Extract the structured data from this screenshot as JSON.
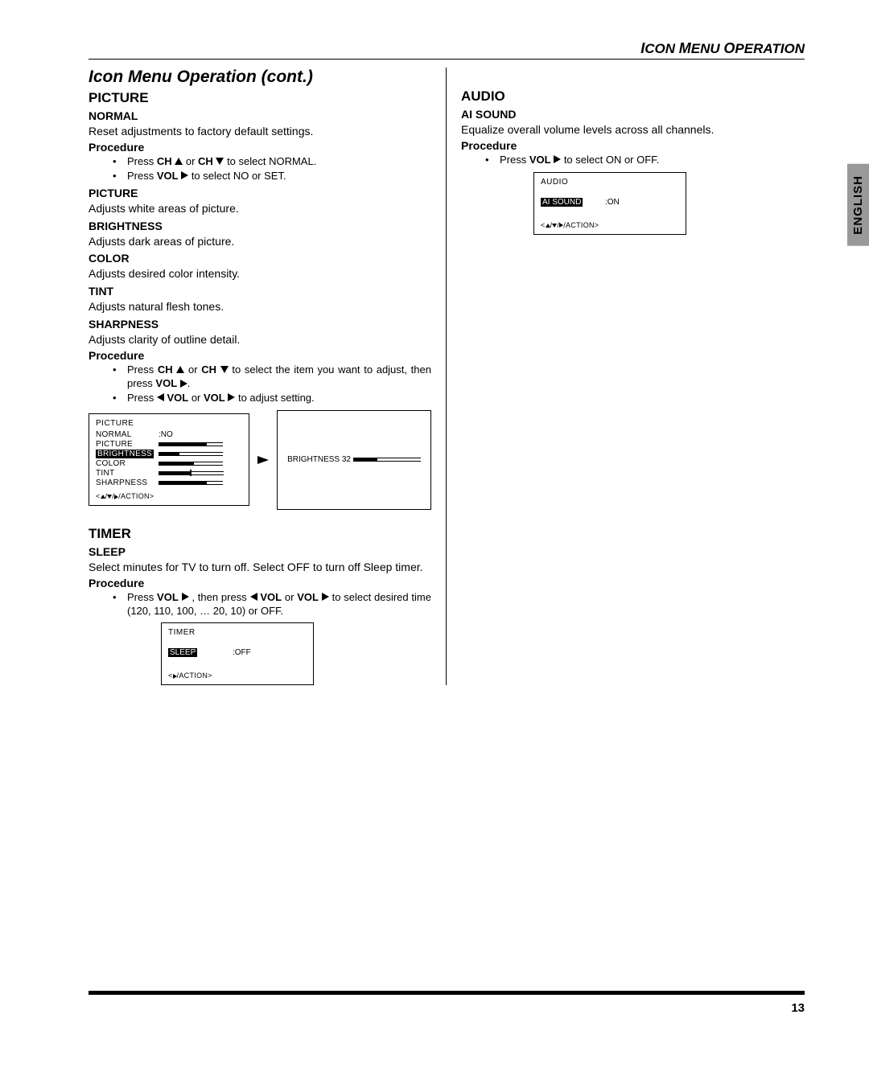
{
  "header": {
    "section": "ICON MENU OPERATION"
  },
  "sideTab": "ENGLISH",
  "left": {
    "titleCont": "Icon Menu Operation (cont.)",
    "picture": {
      "heading": "PICTURE",
      "normal": {
        "label": "NORMAL",
        "desc": "Reset adjustments to factory default settings.",
        "procLabel": "Procedure",
        "step1a": "Press ",
        "step1b": "CH",
        "step1c": " or ",
        "step1d": "CH",
        "step1e": " to select NORMAL.",
        "step2a": "Press ",
        "step2b": "VOL",
        "step2c": " to select NO or SET."
      },
      "pictureItem": {
        "label": "PICTURE",
        "desc": "Adjusts white areas of picture."
      },
      "brightness": {
        "label": "BRIGHTNESS",
        "desc": "Adjusts dark areas of picture."
      },
      "color": {
        "label": "COLOR",
        "desc": "Adjusts desired color intensity."
      },
      "tint": {
        "label": "TINT",
        "desc": "Adjusts natural flesh tones."
      },
      "sharpness": {
        "label": "SHARPNESS",
        "desc": "Adjusts clarity of outline detail.",
        "procLabel": "Procedure",
        "s1a": "Press ",
        "s1b": "CH",
        "s1c": " or ",
        "s1d": "CH",
        "s1e": " to select the item you want to adjust, then press ",
        "s1f": "VOL",
        "s1g": ".",
        "s2a": "Press ",
        "s2b": "VOL",
        "s2c": " or ",
        "s2d": "VOL",
        "s2e": " to adjust setting."
      },
      "osd": {
        "title": "PICTURE",
        "rows": [
          {
            "label": "NORMAL",
            "value": ":NO",
            "fill": 0,
            "empty": 0
          },
          {
            "label": "PICTURE",
            "fill": 60,
            "empty": 20
          },
          {
            "label": "BRIGHTNESS",
            "inv": true,
            "fill": 26,
            "empty": 54
          },
          {
            "label": "COLOR",
            "fill": 44,
            "empty": 36
          },
          {
            "label": "TINT",
            "fill": 40,
            "empty": 40,
            "tick": true
          },
          {
            "label": "SHARPNESS",
            "fill": 60,
            "empty": 20
          }
        ],
        "nav": "/ACTION",
        "br_label": "BRIGHTNESS 32",
        "br_fill": 30,
        "br_empty": 54
      }
    },
    "timer": {
      "heading": "TIMER",
      "sleep": {
        "label": "SLEEP",
        "desc": "Select minutes for TV to turn off. Select OFF to turn off Sleep timer.",
        "procLabel": "Procedure",
        "s1a": "Press ",
        "s1b": "VOL",
        "s1c": " , then press ",
        "s1d": "VOL",
        "s1e": " or ",
        "s1f": "VOL",
        "s1g": " to select desired time (120, 110, 100, … 20, 10) or OFF."
      },
      "osd": {
        "title": "TIMER",
        "label": "SLEEP",
        "value": ":OFF",
        "nav": "/ACTION"
      }
    }
  },
  "right": {
    "audio": {
      "heading": "AUDIO",
      "ai": {
        "label": "AI SOUND",
        "desc": "Equalize overall volume levels across all channels.",
        "procLabel": "Procedure",
        "s1a": "Press ",
        "s1b": "VOL",
        "s1c": " to select ON or OFF."
      },
      "osd": {
        "title": "AUDIO",
        "label": "AI SOUND",
        "value": ":ON",
        "nav": "/ACTION"
      }
    }
  },
  "pageNum": "13"
}
